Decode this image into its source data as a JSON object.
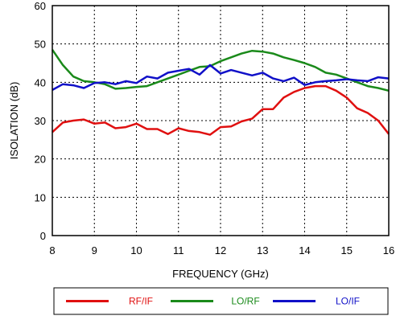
{
  "chart_data": {
    "type": "line",
    "title": "",
    "xlabel": "FREQUENCY (GHz)",
    "ylabel": "ISOLATION (dB)",
    "xlim": [
      8,
      16
    ],
    "ylim": [
      0,
      60
    ],
    "xticks": [
      8,
      9,
      10,
      11,
      12,
      13,
      14,
      15,
      16
    ],
    "yticks": [
      0,
      10,
      20,
      30,
      40,
      50,
      60
    ],
    "grid": true,
    "legend_position": "bottom",
    "series": [
      {
        "name": "RF/IF",
        "color": "#e01010",
        "points": [
          [
            8.0,
            27.0
          ],
          [
            8.25,
            29.5
          ],
          [
            8.5,
            30.0
          ],
          [
            8.75,
            30.3
          ],
          [
            9.0,
            29.2
          ],
          [
            9.25,
            29.5
          ],
          [
            9.5,
            28.0
          ],
          [
            9.75,
            28.3
          ],
          [
            10.0,
            29.2
          ],
          [
            10.25,
            27.8
          ],
          [
            10.5,
            27.8
          ],
          [
            10.75,
            26.5
          ],
          [
            11.0,
            28.0
          ],
          [
            11.25,
            27.3
          ],
          [
            11.5,
            27.0
          ],
          [
            11.75,
            26.3
          ],
          [
            12.0,
            28.3
          ],
          [
            12.25,
            28.5
          ],
          [
            12.5,
            29.8
          ],
          [
            12.75,
            30.5
          ],
          [
            13.0,
            33.0
          ],
          [
            13.25,
            33.0
          ],
          [
            13.5,
            36.0
          ],
          [
            13.75,
            37.5
          ],
          [
            14.0,
            38.5
          ],
          [
            14.25,
            39.0
          ],
          [
            14.5,
            39.0
          ],
          [
            14.75,
            37.8
          ],
          [
            15.0,
            36.0
          ],
          [
            15.25,
            33.2
          ],
          [
            15.5,
            32.0
          ],
          [
            15.75,
            30.0
          ],
          [
            16.0,
            26.5
          ]
        ]
      },
      {
        "name": "LO/RF",
        "color": "#1a8a1a",
        "points": [
          [
            8.0,
            48.5
          ],
          [
            8.25,
            44.5
          ],
          [
            8.5,
            41.5
          ],
          [
            8.75,
            40.3
          ],
          [
            9.0,
            40.0
          ],
          [
            9.25,
            39.5
          ],
          [
            9.5,
            38.3
          ],
          [
            9.75,
            38.5
          ],
          [
            10.0,
            38.8
          ],
          [
            10.25,
            39.0
          ],
          [
            10.5,
            40.0
          ],
          [
            10.75,
            41.0
          ],
          [
            11.0,
            42.0
          ],
          [
            11.25,
            43.0
          ],
          [
            11.5,
            44.0
          ],
          [
            11.75,
            44.2
          ],
          [
            12.0,
            45.5
          ],
          [
            12.25,
            46.5
          ],
          [
            12.5,
            47.5
          ],
          [
            12.75,
            48.2
          ],
          [
            13.0,
            48.0
          ],
          [
            13.25,
            47.5
          ],
          [
            13.5,
            46.5
          ],
          [
            13.75,
            45.8
          ],
          [
            14.0,
            45.0
          ],
          [
            14.25,
            44.0
          ],
          [
            14.5,
            42.5
          ],
          [
            14.75,
            42.0
          ],
          [
            15.0,
            41.0
          ],
          [
            15.25,
            40.0
          ],
          [
            15.5,
            39.0
          ],
          [
            15.75,
            38.5
          ],
          [
            16.0,
            37.8
          ]
        ]
      },
      {
        "name": "LO/IF",
        "color": "#1010c8",
        "points": [
          [
            8.0,
            38.0
          ],
          [
            8.25,
            39.5
          ],
          [
            8.5,
            39.2
          ],
          [
            8.75,
            38.5
          ],
          [
            9.0,
            39.8
          ],
          [
            9.25,
            40.0
          ],
          [
            9.5,
            39.5
          ],
          [
            9.75,
            40.3
          ],
          [
            10.0,
            39.8
          ],
          [
            10.25,
            41.5
          ],
          [
            10.5,
            41.0
          ],
          [
            10.75,
            42.5
          ],
          [
            11.0,
            43.0
          ],
          [
            11.25,
            43.5
          ],
          [
            11.5,
            42.0
          ],
          [
            11.75,
            44.5
          ],
          [
            12.0,
            42.3
          ],
          [
            12.25,
            43.2
          ],
          [
            12.5,
            42.5
          ],
          [
            12.75,
            41.8
          ],
          [
            13.0,
            42.5
          ],
          [
            13.25,
            41.0
          ],
          [
            13.5,
            40.3
          ],
          [
            13.75,
            41.2
          ],
          [
            14.0,
            39.3
          ],
          [
            14.25,
            40.0
          ],
          [
            14.5,
            40.3
          ],
          [
            14.75,
            40.5
          ],
          [
            15.0,
            40.8
          ],
          [
            15.25,
            40.5
          ],
          [
            15.5,
            40.3
          ],
          [
            15.75,
            41.3
          ],
          [
            16.0,
            41.0
          ]
        ]
      }
    ]
  }
}
